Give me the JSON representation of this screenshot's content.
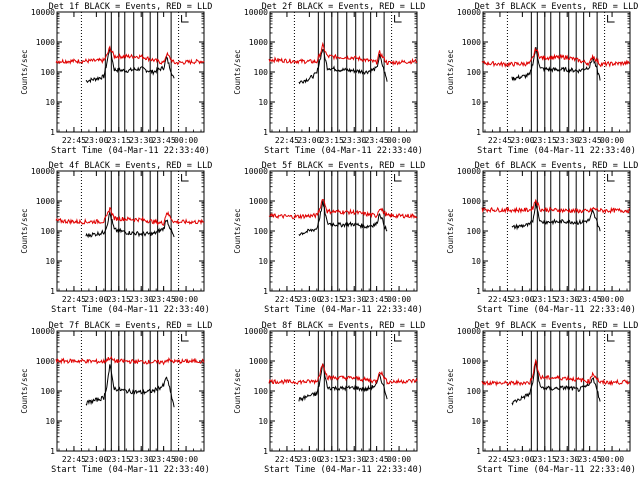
{
  "colors": {
    "events": "#000000",
    "lld": "#e00000",
    "background": "#ffffff",
    "axes": "#000000"
  },
  "shared": {
    "ylabel": "Counts/sec",
    "xlabel": "Start Time (04-Mar-11 22:33:40)",
    "x_ticks": [
      "22:45",
      "23:00",
      "23:15",
      "23:30",
      "23:45",
      "00:00"
    ],
    "y_ticks": [
      "1",
      "10",
      "100",
      "1000",
      "10000"
    ],
    "y_scale": "log",
    "ylim": [
      1,
      10000
    ],
    "xlim": [
      "22:33:40",
      "00:12:00"
    ]
  },
  "chart_data": [
    {
      "type": "line",
      "detector": "1f",
      "title": "Det 1f BLACK = Events, RED = LLD",
      "x_ticks": [
        "22:45",
        "23:00",
        "23:15",
        "23:30",
        "23:45",
        "00:00"
      ],
      "ylim": [
        1,
        10000
      ],
      "y_scale": "log",
      "series": [
        {
          "color": "#000000",
          "x": [
            "22:53",
            "23:00",
            "23:05",
            "23:07",
            "23:09",
            "23:12",
            "23:20",
            "23:30",
            "23:38",
            "23:45",
            "23:47",
            "23:52"
          ],
          "y": [
            50,
            60,
            70,
            200,
            650,
            120,
            110,
            130,
            100,
            140,
            300,
            55
          ]
        },
        {
          "color": "#e00000",
          "x": [
            "22:33",
            "22:50",
            "23:05",
            "23:07",
            "23:09",
            "23:12",
            "23:30",
            "23:45",
            "23:47",
            "23:52",
            "00:12"
          ],
          "y": [
            230,
            230,
            240,
            350,
            650,
            330,
            330,
            200,
            400,
            200,
            230
          ]
        }
      ],
      "vertical_lines": [
        "23:06",
        "23:10",
        "23:15",
        "23:19",
        "23:25",
        "23:31",
        "23:36",
        "23:41",
        "23:50"
      ],
      "dotted_lines": [
        "22:50",
        "23:55"
      ]
    },
    {
      "type": "line",
      "detector": "2f",
      "title": "Det 2f BLACK = Events, RED = LLD",
      "x_ticks": [
        "22:45",
        "23:00",
        "23:15",
        "23:30",
        "23:45",
        "00:00"
      ],
      "ylim": [
        1,
        10000
      ],
      "y_scale": "log",
      "series": [
        {
          "color": "#000000",
          "x": [
            "22:53",
            "23:00",
            "23:05",
            "23:07",
            "23:09",
            "23:12",
            "23:20",
            "23:30",
            "23:38",
            "23:45",
            "23:47",
            "23:52"
          ],
          "y": [
            45,
            60,
            90,
            250,
            600,
            140,
            120,
            110,
            100,
            130,
            350,
            50
          ]
        },
        {
          "color": "#e00000",
          "x": [
            "22:33",
            "22:50",
            "23:05",
            "23:07",
            "23:09",
            "23:12",
            "23:30",
            "23:45",
            "23:47",
            "23:52",
            "00:12"
          ],
          "y": [
            260,
            230,
            220,
            380,
            750,
            330,
            300,
            210,
            450,
            200,
            230
          ]
        }
      ],
      "vertical_lines": [
        "23:06",
        "23:10",
        "23:15",
        "23:19",
        "23:25",
        "23:31",
        "23:36",
        "23:41",
        "23:50"
      ],
      "dotted_lines": [
        "22:50",
        "23:55"
      ]
    },
    {
      "type": "line",
      "detector": "3f",
      "title": "Det 3f BLACK = Events, RED = LLD",
      "x_ticks": [
        "22:45",
        "23:00",
        "23:15",
        "23:30",
        "23:45",
        "00:00"
      ],
      "ylim": [
        1,
        10000
      ],
      "y_scale": "log",
      "series": [
        {
          "color": "#000000",
          "x": [
            "22:53",
            "23:00",
            "23:05",
            "23:07",
            "23:09",
            "23:12",
            "23:20",
            "23:30",
            "23:38",
            "23:45",
            "23:47",
            "23:52"
          ],
          "y": [
            60,
            70,
            80,
            200,
            600,
            130,
            120,
            120,
            110,
            150,
            300,
            60
          ]
        },
        {
          "color": "#e00000",
          "x": [
            "22:33",
            "22:50",
            "23:05",
            "23:07",
            "23:09",
            "23:12",
            "23:30",
            "23:45",
            "23:47",
            "23:52",
            "00:12"
          ],
          "y": [
            200,
            180,
            190,
            300,
            600,
            300,
            310,
            190,
            350,
            180,
            200
          ]
        }
      ],
      "vertical_lines": [
        "23:06",
        "23:10",
        "23:15",
        "23:19",
        "23:25",
        "23:31",
        "23:36",
        "23:41",
        "23:50"
      ],
      "dotted_lines": [
        "22:50",
        "23:55"
      ]
    },
    {
      "type": "line",
      "detector": "4f",
      "title": "Det 4f BLACK = Events, RED = LLD",
      "x_ticks": [
        "22:45",
        "23:00",
        "23:15",
        "23:30",
        "23:45",
        "00:00"
      ],
      "ylim": [
        1,
        10000
      ],
      "y_scale": "log",
      "series": [
        {
          "color": "#000000",
          "x": [
            "22:53",
            "23:00",
            "23:05",
            "23:07",
            "23:09",
            "23:12",
            "23:20",
            "23:30",
            "23:38",
            "23:45",
            "23:47",
            "23:52"
          ],
          "y": [
            70,
            80,
            90,
            150,
            400,
            110,
            90,
            80,
            80,
            120,
            250,
            60
          ]
        },
        {
          "color": "#e00000",
          "x": [
            "22:33",
            "22:50",
            "23:05",
            "23:07",
            "23:09",
            "23:12",
            "23:30",
            "23:45",
            "23:47",
            "23:52",
            "00:12"
          ],
          "y": [
            220,
            200,
            210,
            300,
            600,
            260,
            240,
            180,
            420,
            200,
            200
          ]
        }
      ],
      "vertical_lines": [
        "23:06",
        "23:10",
        "23:15",
        "23:19",
        "23:25",
        "23:31",
        "23:36",
        "23:41",
        "23:50"
      ],
      "dotted_lines": [
        "22:50",
        "23:55"
      ]
    },
    {
      "type": "line",
      "detector": "5f",
      "title": "Det 5f BLACK = Events, RED = LLD",
      "x_ticks": [
        "22:45",
        "23:00",
        "23:15",
        "23:30",
        "23:45",
        "00:00"
      ],
      "ylim": [
        1,
        10000
      ],
      "y_scale": "log",
      "series": [
        {
          "color": "#000000",
          "x": [
            "22:53",
            "23:00",
            "23:05",
            "23:07",
            "23:09",
            "23:12",
            "23:20",
            "23:30",
            "23:38",
            "23:45",
            "23:47",
            "23:52"
          ],
          "y": [
            80,
            100,
            120,
            300,
            900,
            180,
            160,
            170,
            140,
            170,
            400,
            90
          ]
        },
        {
          "color": "#e00000",
          "x": [
            "22:33",
            "22:50",
            "23:05",
            "23:07",
            "23:09",
            "23:12",
            "23:30",
            "23:45",
            "23:47",
            "23:52",
            "00:12"
          ],
          "y": [
            320,
            300,
            330,
            550,
            1300,
            450,
            420,
            320,
            600,
            320,
            320
          ]
        }
      ],
      "vertical_lines": [
        "23:06",
        "23:10",
        "23:15",
        "23:19",
        "23:25",
        "23:31",
        "23:36",
        "23:41",
        "23:50"
      ],
      "dotted_lines": [
        "22:50",
        "23:55"
      ]
    },
    {
      "type": "line",
      "detector": "6f",
      "title": "Det 6f BLACK = Events, RED = LLD",
      "x_ticks": [
        "22:45",
        "23:00",
        "23:15",
        "23:30",
        "23:45",
        "00:00"
      ],
      "ylim": [
        1,
        10000
      ],
      "y_scale": "log",
      "series": [
        {
          "color": "#000000",
          "x": [
            "22:53",
            "23:00",
            "23:05",
            "23:07",
            "23:09",
            "23:12",
            "23:20",
            "23:30",
            "23:38",
            "23:45",
            "23:47",
            "23:52"
          ],
          "y": [
            130,
            150,
            160,
            220,
            900,
            200,
            200,
            210,
            190,
            230,
            450,
            110
          ]
        },
        {
          "color": "#e00000",
          "x": [
            "22:33",
            "22:50",
            "23:05",
            "23:07",
            "23:09",
            "23:12",
            "23:30",
            "23:45",
            "23:47",
            "23:52",
            "00:12"
          ],
          "y": [
            520,
            500,
            500,
            600,
            1100,
            520,
            480,
            450,
            560,
            480,
            480
          ]
        }
      ],
      "vertical_lines": [
        "23:06",
        "23:10",
        "23:15",
        "23:19",
        "23:25",
        "23:31",
        "23:36",
        "23:41",
        "23:50"
      ],
      "dotted_lines": [
        "22:50",
        "23:55"
      ]
    },
    {
      "type": "line",
      "detector": "7f",
      "title": "Det 7f BLACK = Events, RED = LLD",
      "x_ticks": [
        "22:45",
        "23:00",
        "23:15",
        "23:30",
        "23:45",
        "00:00"
      ],
      "ylim": [
        1,
        10000
      ],
      "y_scale": "log",
      "series": [
        {
          "color": "#000000",
          "x": [
            "22:53",
            "23:00",
            "23:05",
            "23:07",
            "23:09",
            "23:12",
            "23:20",
            "23:30",
            "23:38",
            "23:45",
            "23:47",
            "23:52"
          ],
          "y": [
            40,
            50,
            60,
            150,
            700,
            120,
            100,
            90,
            100,
            150,
            300,
            30
          ]
        },
        {
          "color": "#e00000",
          "x": [
            "22:33",
            "22:50",
            "23:05",
            "23:07",
            "23:09",
            "23:12",
            "23:30",
            "23:45",
            "23:47",
            "23:52",
            "00:12"
          ],
          "y": [
            1000,
            1000,
            950,
            1100,
            1300,
            1000,
            950,
            900,
            1100,
            950,
            1000
          ]
        }
      ],
      "vertical_lines": [
        "23:06",
        "23:10",
        "23:15",
        "23:19",
        "23:25",
        "23:31",
        "23:36",
        "23:41",
        "23:50"
      ],
      "dotted_lines": [
        "22:50",
        "23:55"
      ]
    },
    {
      "type": "line",
      "detector": "8f",
      "title": "Det 8f BLACK = Events, RED = LLD",
      "x_ticks": [
        "22:45",
        "23:00",
        "23:15",
        "23:30",
        "23:45",
        "00:00"
      ],
      "ylim": [
        1,
        10000
      ],
      "y_scale": "log",
      "series": [
        {
          "color": "#000000",
          "x": [
            "22:53",
            "23:00",
            "23:05",
            "23:07",
            "23:09",
            "23:12",
            "23:20",
            "23:30",
            "23:38",
            "23:45",
            "23:47",
            "23:52"
          ],
          "y": [
            50,
            70,
            80,
            200,
            800,
            130,
            120,
            130,
            110,
            160,
            350,
            60
          ]
        },
        {
          "color": "#e00000",
          "x": [
            "22:33",
            "22:50",
            "23:05",
            "23:07",
            "23:09",
            "23:12",
            "23:30",
            "23:45",
            "23:47",
            "23:52",
            "00:12"
          ],
          "y": [
            210,
            200,
            210,
            380,
            900,
            280,
            270,
            210,
            480,
            200,
            220
          ]
        }
      ],
      "vertical_lines": [
        "23:06",
        "23:10",
        "23:15",
        "23:19",
        "23:25",
        "23:31",
        "23:36",
        "23:41",
        "23:50"
      ],
      "dotted_lines": [
        "22:50",
        "23:55"
      ]
    },
    {
      "type": "line",
      "detector": "9f",
      "title": "Det 9f BLACK = Events, RED = LLD",
      "x_ticks": [
        "22:45",
        "23:00",
        "23:15",
        "23:30",
        "23:45",
        "00:00"
      ],
      "ylim": [
        1,
        10000
      ],
      "y_scale": "log",
      "series": [
        {
          "color": "#000000",
          "x": [
            "22:53",
            "23:00",
            "23:05",
            "23:07",
            "23:09",
            "23:12",
            "23:20",
            "23:30",
            "23:38",
            "23:45",
            "23:47",
            "23:52"
          ],
          "y": [
            40,
            60,
            80,
            200,
            900,
            130,
            120,
            130,
            110,
            160,
            300,
            50
          ]
        },
        {
          "color": "#e00000",
          "x": [
            "22:33",
            "22:50",
            "23:05",
            "23:07",
            "23:09",
            "23:12",
            "23:30",
            "23:45",
            "23:47",
            "23:52",
            "00:12"
          ],
          "y": [
            190,
            180,
            190,
            360,
            1000,
            280,
            270,
            210,
            400,
            190,
            200
          ]
        }
      ],
      "vertical_lines": [
        "23:06",
        "23:10",
        "23:15",
        "23:19",
        "23:25",
        "23:31",
        "23:36",
        "23:41",
        "23:50"
      ],
      "dotted_lines": [
        "22:50",
        "23:55"
      ]
    }
  ]
}
